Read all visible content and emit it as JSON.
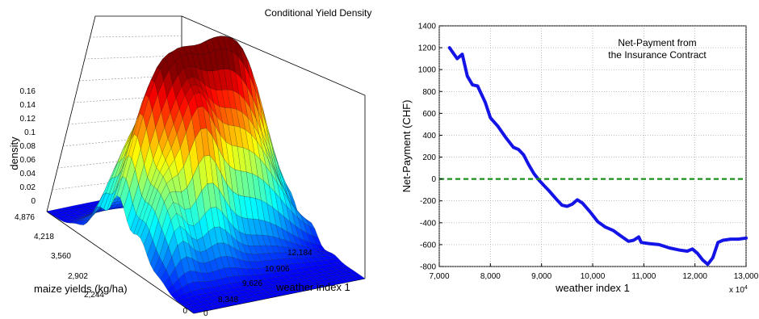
{
  "chart_data": [
    {
      "type": "surface",
      "title": "Conditional Yield Density",
      "zlabel": "density",
      "xlabel": "maize yields (kg/ha)",
      "ylabel": "weather index 1",
      "zticks": [
        "0.16",
        "0.14",
        "0.12",
        "0.1",
        "0.08",
        "0.06",
        "0.04",
        "0.02",
        "0"
      ],
      "xticks": [
        "4,876",
        "4,218",
        "3,560",
        "2,902",
        "2,244",
        "0"
      ],
      "yticks": [
        "8,348",
        "9,626",
        "10,906",
        "12,184",
        "0"
      ],
      "colormap": "jet"
    },
    {
      "type": "line",
      "title_lines": [
        "Net-Payment from",
        "the Insurance Contract"
      ],
      "xlabel": "weather index 1",
      "ylabel": "Net-Payment (CHF)",
      "xlim": [
        7000,
        13000
      ],
      "ylim": [
        -800,
        1400
      ],
      "xticks": [
        "7,000",
        "8,000",
        "9,000",
        "10,000",
        "11,000",
        "12,000",
        "13,000"
      ],
      "yticks": [
        "1400",
        "1200",
        "1000",
        "800",
        "600",
        "400",
        "200",
        "0",
        "-200",
        "-400",
        "-600",
        "-800"
      ],
      "x_multiplier": "x 10",
      "x_multiplier_exp": "4",
      "grid": true,
      "series": [
        {
          "color": "#1414e6",
          "style": "solid",
          "x": [
            7200,
            7350,
            7450,
            7550,
            7650,
            7750,
            7900,
            8000,
            8150,
            8300,
            8450,
            8550,
            8650,
            8750,
            8850,
            8950,
            9050,
            9150,
            9300,
            9400,
            9500,
            9600,
            9700,
            9800,
            9950,
            10100,
            10250,
            10400,
            10550,
            10700,
            10800,
            10900,
            10950,
            11100,
            11300,
            11500,
            11700,
            11850,
            11950,
            12050,
            12150,
            12250,
            12350,
            12450,
            12550,
            12700,
            12850,
            13000
          ],
          "y": [
            1200,
            1100,
            1140,
            940,
            860,
            850,
            700,
            560,
            480,
            380,
            290,
            270,
            220,
            130,
            50,
            -10,
            -60,
            -110,
            -190,
            -240,
            -250,
            -230,
            -190,
            -220,
            -300,
            -390,
            -440,
            -470,
            -520,
            -570,
            -560,
            -530,
            -580,
            -590,
            -600,
            -630,
            -650,
            -660,
            -640,
            -680,
            -740,
            -780,
            -720,
            -580,
            -560,
            -550,
            -550,
            -540
          ]
        },
        {
          "color": "#1a8f1a",
          "style": "dashed",
          "x": [
            7000,
            13000
          ],
          "y": [
            0,
            0
          ]
        }
      ]
    }
  ]
}
